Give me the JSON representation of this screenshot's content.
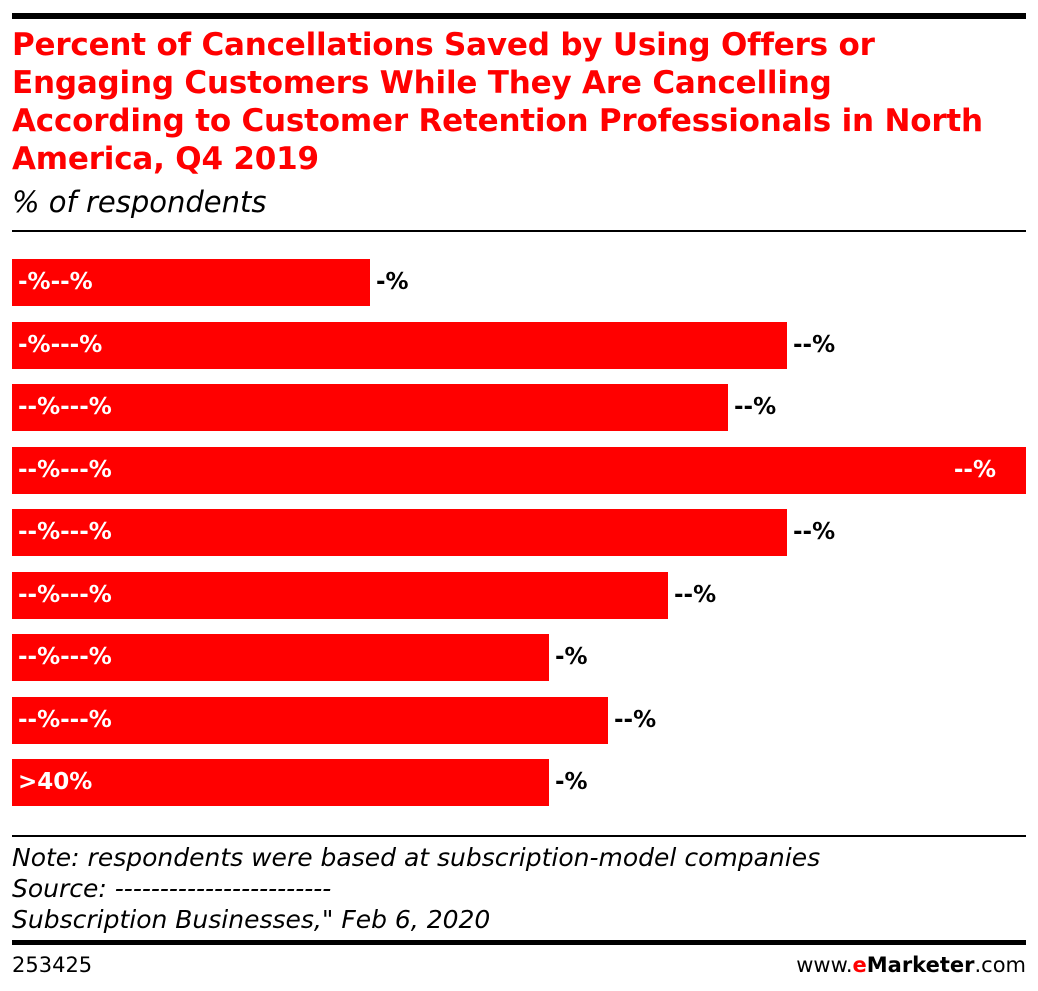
{
  "chart_data": {
    "type": "bar",
    "orientation": "horizontal",
    "title": "Percent of Cancellations Saved by Using Offers or Engaging Customers While They Are Cancelling According to Customer Retention Professionals in North America, Q4 2019",
    "subtitle": "% of respondents",
    "categories": [
      "-%--%",
      "-%---%",
      "--%---%",
      "--%---%",
      "--%---%",
      "--%---%",
      "--%---%",
      "--%---%",
      ">40%"
    ],
    "values": [
      6,
      13,
      12,
      17,
      13,
      11,
      9,
      10,
      9
    ],
    "value_labels": [
      "-%",
      "--%",
      "--%",
      "--%",
      "--%",
      "--%",
      "-%",
      "--%",
      "-%"
    ],
    "xlim": [
      0,
      17
    ],
    "grid": false,
    "bar_color": "#ff0000"
  },
  "footer": {
    "note": "Note: respondents were based at subscription-model companies",
    "source": "Source: ------------------------",
    "source_cont": "Subscription Businesses,\" Feb 6, 2020",
    "chart_id": "253425",
    "brand_prefix": "www.",
    "brand_e": "e",
    "brand_name": "Marketer",
    "brand_suffix": ".com"
  },
  "colors": {
    "accent": "#ff0000",
    "text": "#000000"
  }
}
